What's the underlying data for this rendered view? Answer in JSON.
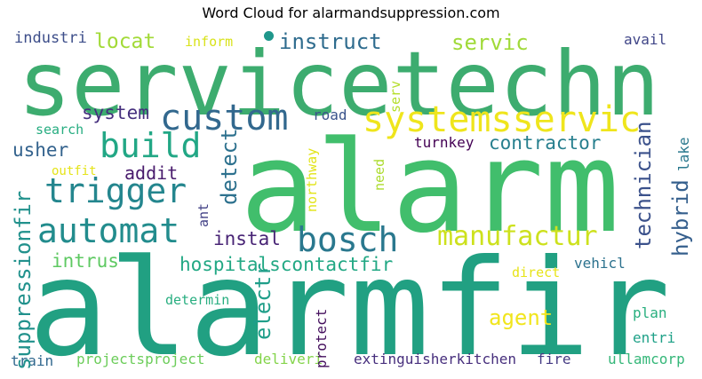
{
  "title": "Word Cloud for alarmandsuppression.com",
  "words": [
    {
      "id": "w0",
      "text": "servicetechn",
      "color": "#3dac6f"
    },
    {
      "id": "w1",
      "text": "alarm",
      "color": "#41be6c"
    },
    {
      "id": "w2",
      "text": "alarmfir",
      "color": "#21a082"
    },
    {
      "id": "w3",
      "text": "systemsservic",
      "color": "#efe51c"
    },
    {
      "id": "w4",
      "text": "custom",
      "color": "#32688e"
    },
    {
      "id": "w5",
      "text": "build",
      "color": "#22a785"
    },
    {
      "id": "w6",
      "text": "trigger",
      "color": "#24868e"
    },
    {
      "id": "w7",
      "text": "automat",
      "color": "#228c8d"
    },
    {
      "id": "w8",
      "text": "bosch",
      "color": "#2a788e"
    },
    {
      "id": "w9",
      "text": "manufactur",
      "color": "#cde11d"
    },
    {
      "id": "w10",
      "text": "instruct",
      "color": "#2f6c8e"
    },
    {
      "id": "w11",
      "text": "locat",
      "color": "#a2da37"
    },
    {
      "id": "w12",
      "text": "servic",
      "color": "#a0da39"
    },
    {
      "id": "w13",
      "text": "industri",
      "color": "#3d4e8a"
    },
    {
      "id": "w14",
      "text": "inform",
      "color": "#d8e219"
    },
    {
      "id": "w15",
      "text": "avail",
      "color": "#404688"
    },
    {
      "id": "w16",
      "text": "system",
      "color": "#46307e"
    },
    {
      "id": "w17",
      "text": "road",
      "color": "#3a538b"
    },
    {
      "id": "w18",
      "text": "search",
      "color": "#27ad81"
    },
    {
      "id": "w19",
      "text": "usher",
      "color": "#33628d"
    },
    {
      "id": "w20",
      "text": "addit",
      "color": "#481a6c"
    },
    {
      "id": "w21",
      "text": "contractor",
      "color": "#277f8e"
    },
    {
      "id": "w22",
      "text": "turnkey",
      "color": "#440154"
    },
    {
      "id": "w23",
      "text": "outfit",
      "color": "#e5e419"
    },
    {
      "id": "w24",
      "text": "instal",
      "color": "#482475"
    },
    {
      "id": "w25",
      "text": "intrus",
      "color": "#5ec962"
    },
    {
      "id": "w26",
      "text": "hospitalscontactfir",
      "color": "#22a884"
    },
    {
      "id": "w27",
      "text": "agent",
      "color": "#f1e51d"
    },
    {
      "id": "w28",
      "text": "vehicl",
      "color": "#2c728e"
    },
    {
      "id": "w29",
      "text": "determin",
      "color": "#28ae80"
    },
    {
      "id": "w30",
      "text": "direct",
      "color": "#e7e419"
    },
    {
      "id": "w31",
      "text": "plan",
      "color": "#29af7f"
    },
    {
      "id": "w32",
      "text": "entri",
      "color": "#1fa188"
    },
    {
      "id": "w33",
      "text": "ullamcorp",
      "color": "#35b779"
    },
    {
      "id": "w34",
      "text": "fire",
      "color": "#443a83"
    },
    {
      "id": "w35",
      "text": "extinguisherkitchen",
      "color": "#472f7d"
    },
    {
      "id": "w36",
      "text": "deliveri",
      "color": "#84d44b"
    },
    {
      "id": "w37",
      "text": "projectsproject",
      "color": "#6ccd5a"
    },
    {
      "id": "w38",
      "text": "train",
      "color": "#31688e"
    },
    {
      "id": "w39",
      "text": "suppressionfir",
      "color": "#21918c"
    },
    {
      "id": "w40",
      "text": "detect",
      "color": "#2d718e"
    },
    {
      "id": "w41",
      "text": "electr",
      "color": "#1f9e89"
    },
    {
      "id": "w42",
      "text": "protect",
      "color": "#440f5d"
    },
    {
      "id": "w43",
      "text": "technician",
      "color": "#3b518b"
    },
    {
      "id": "w44",
      "text": "hybrid",
      "color": "#355f8d"
    },
    {
      "id": "w45",
      "text": "lake",
      "color": "#2a788e"
    },
    {
      "id": "w46",
      "text": "serv",
      "color": "#b5de2b"
    },
    {
      "id": "w47",
      "text": "northway",
      "color": "#e2e418"
    },
    {
      "id": "w48",
      "text": "need",
      "color": "#addc30"
    },
    {
      "id": "w49",
      "text": "ant",
      "color": "#424186"
    },
    {
      "id": "w50",
      "text": "dot",
      "color": "#1f978b"
    }
  ]
}
